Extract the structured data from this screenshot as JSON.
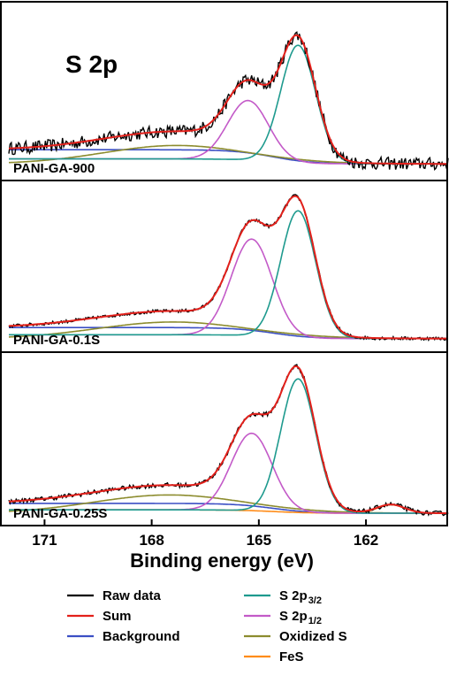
{
  "chart_data": {
    "type": "line",
    "title": "S 2p",
    "xlabel": "Binding energy (eV)",
    "ylabel": "",
    "xlim": [
      172.0,
      159.7
    ],
    "x_reversed": true,
    "xticks": [
      171,
      168,
      165,
      162
    ],
    "xtick_labels": [
      "171",
      "168",
      "165",
      "162"
    ],
    "legend": [
      {
        "key": "raw",
        "name": "Raw data",
        "color": "#000000"
      },
      {
        "key": "sum",
        "name": "Sum",
        "color": "#e3201b"
      },
      {
        "key": "bg",
        "name": "Background",
        "color": "#3b4fc4"
      },
      {
        "key": "p32",
        "name": "S 2p",
        "sub": "3/2",
        "color": "#1e9a8e"
      },
      {
        "key": "p12",
        "name": "S 2p",
        "sub": "1/2",
        "color": "#c35ac8"
      },
      {
        "key": "ox",
        "name": "Oxidized S",
        "color": "#8c8c2e"
      },
      {
        "key": "fes",
        "name": "FeS",
        "color": "#ff8c1a"
      }
    ],
    "panels": [
      {
        "label": "PANI-GA-900",
        "ylim": [
          -0.08,
          1.12
        ],
        "noise": 0.045,
        "background": {
          "left": 0.1,
          "right": 0.0
        },
        "components": {
          "p32": {
            "center": 163.9,
            "height": 0.83,
            "fwhm": 1.15
          },
          "p12": {
            "center": 165.3,
            "height": 0.42,
            "fwhm": 1.35
          },
          "ox": {
            "center": 167.3,
            "height": 0.13,
            "fwhm": 4.8
          }
        }
      },
      {
        "label": "PANI-GA-0.1S",
        "ylim": [
          -0.06,
          1.12
        ],
        "noise": 0.012,
        "background": {
          "left": 0.08,
          "right": 0.0
        },
        "components": {
          "p32": {
            "center": 163.9,
            "height": 0.92,
            "fwhm": 1.15
          },
          "p12": {
            "center": 165.2,
            "height": 0.7,
            "fwhm": 1.35
          },
          "ox": {
            "center": 167.4,
            "height": 0.12,
            "fwhm": 5.0
          }
        }
      },
      {
        "label": "PANI-GA-0.25S",
        "ylim": [
          -0.05,
          1.12
        ],
        "noise": 0.016,
        "background": {
          "left": 0.07,
          "right": 0.0
        },
        "components": {
          "p32": {
            "center": 163.9,
            "height": 0.95,
            "fwhm": 1.15
          },
          "p12": {
            "center": 165.2,
            "height": 0.55,
            "fwhm": 1.35
          },
          "ox": {
            "center": 167.5,
            "height": 0.13,
            "fwhm": 5.0
          },
          "fes": {
            "center": 161.3,
            "height": 0.06,
            "fwhm": 0.9
          }
        }
      }
    ]
  }
}
